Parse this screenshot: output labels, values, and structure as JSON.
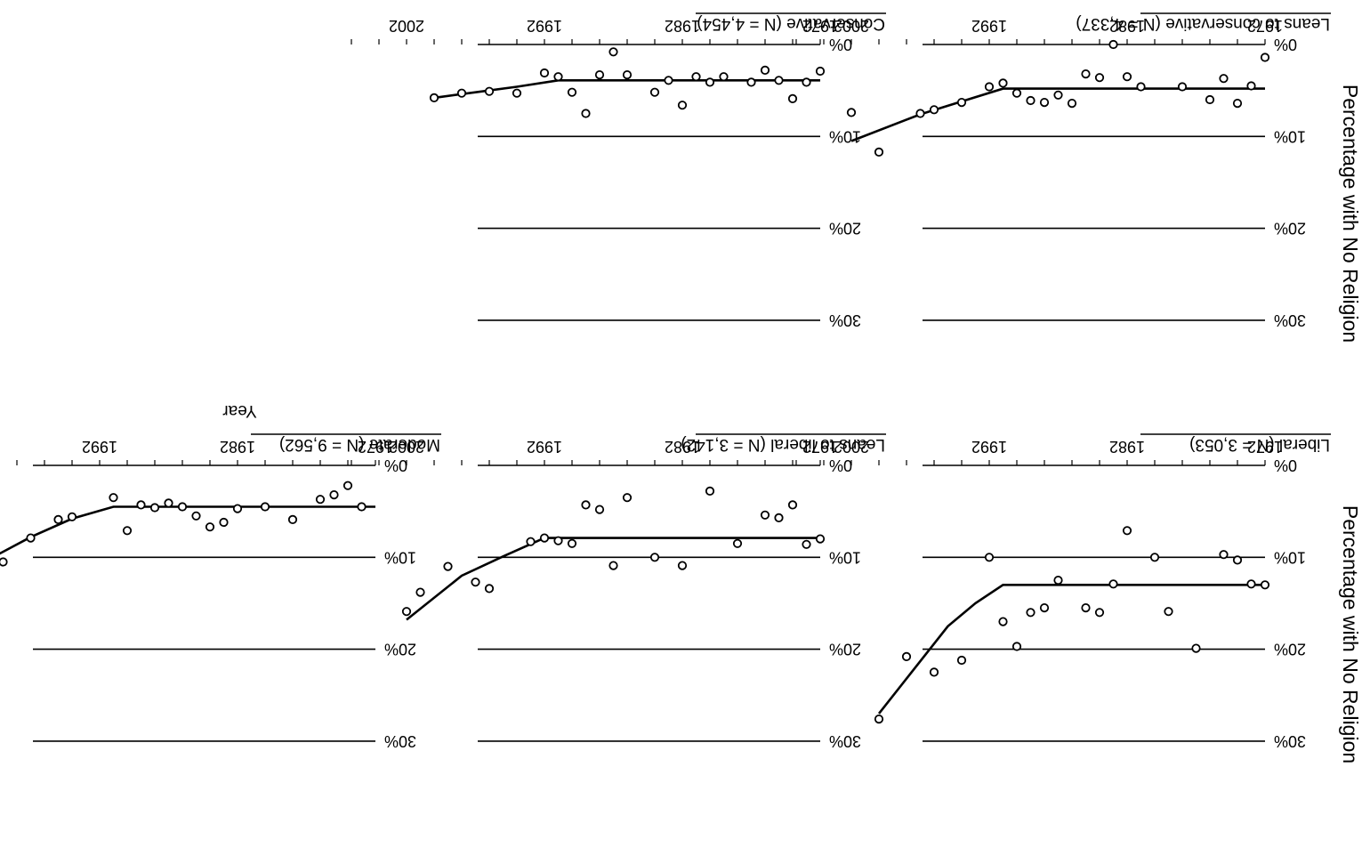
{
  "y_axis_title": "Percentage with No Religion",
  "chart_data": [
    {
      "type": "scatter",
      "title": "Liberal (N = 3,053)",
      "xlabel": "",
      "ylabel": "Percentage with No Religion",
      "xlim": [
        1972,
        2006
      ],
      "ylim": [
        0,
        30
      ],
      "xticks": [
        "1972",
        "1982",
        "1992",
        "2002"
      ],
      "yticks": [
        "0%",
        "10%",
        "20%",
        "30%"
      ],
      "grid": true,
      "points": [
        [
          1972,
          13
        ],
        [
          1973,
          12.9
        ],
        [
          1974,
          10.3
        ],
        [
          1975,
          9.7
        ],
        [
          1977,
          19.9
        ],
        [
          1979,
          15.9
        ],
        [
          1980,
          10
        ],
        [
          1982,
          7.1
        ],
        [
          1983,
          12.9
        ],
        [
          1984,
          16
        ],
        [
          1985,
          15.5
        ],
        [
          1987,
          12.5
        ],
        [
          1988,
          15.5
        ],
        [
          1989,
          16
        ],
        [
          1990,
          19.7
        ],
        [
          1991,
          17
        ],
        [
          1992,
          10
        ],
        [
          1994,
          21.2
        ],
        [
          1996,
          22.5
        ],
        [
          1998,
          20.8
        ],
        [
          2000,
          27.6
        ]
      ],
      "fit": [
        [
          1972,
          13
        ],
        [
          1991,
          13
        ],
        [
          1993,
          15
        ],
        [
          1995,
          17.5
        ],
        [
          2000,
          27
        ]
      ]
    },
    {
      "type": "scatter",
      "title": "Leans to liberal (N = 3,142)",
      "xlabel": "",
      "ylabel": "",
      "xlim": [
        1972,
        2006
      ],
      "ylim": [
        0,
        30
      ],
      "xticks": [
        "1972",
        "1982",
        "1992",
        "2002"
      ],
      "yticks": [
        "0%",
        "10%",
        "20%",
        "30%"
      ],
      "grid": true,
      "points": [
        [
          1972,
          8
        ],
        [
          1973,
          8.6
        ],
        [
          1974,
          4.3
        ],
        [
          1975,
          5.7
        ],
        [
          1976,
          5.4
        ],
        [
          1978,
          8.5
        ],
        [
          1980,
          2.8
        ],
        [
          1982,
          10.9
        ],
        [
          1984,
          10
        ],
        [
          1986,
          3.5
        ],
        [
          1987,
          10.9
        ],
        [
          1988,
          4.8
        ],
        [
          1989,
          4.3
        ],
        [
          1990,
          8.5
        ],
        [
          1991,
          8.2
        ],
        [
          1992,
          7.9
        ],
        [
          1993,
          8.3
        ],
        [
          1996,
          13.4
        ],
        [
          1997,
          12.7
        ],
        [
          1999,
          11
        ],
        [
          2001,
          13.8
        ],
        [
          2002,
          15.9
        ]
      ],
      "fit": [
        [
          1972,
          7.9
        ],
        [
          1992,
          7.9
        ],
        [
          1995,
          9.9
        ],
        [
          1998,
          12
        ],
        [
          2002,
          16.8
        ]
      ]
    },
    {
      "type": "scatter",
      "title": "Moderate (N = 9,562)",
      "xlabel": "Year",
      "ylabel": "",
      "xlim": [
        1972,
        2006
      ],
      "ylim": [
        0,
        30
      ],
      "xticks": [
        "1972",
        "1982",
        "1992",
        "2002"
      ],
      "yticks": [
        "0%",
        "10%",
        "20%",
        "30%"
      ],
      "grid": true,
      "points": [
        [
          1973,
          4.5
        ],
        [
          1974,
          2.2
        ],
        [
          1975,
          3.2
        ],
        [
          1976,
          3.7
        ],
        [
          1978,
          5.9
        ],
        [
          1980,
          4.5
        ],
        [
          1982,
          4.7
        ],
        [
          1983,
          6.2
        ],
        [
          1984,
          6.7
        ],
        [
          1985,
          5.5
        ],
        [
          1986,
          4.5
        ],
        [
          1987,
          4.1
        ],
        [
          1988,
          4.6
        ],
        [
          1989,
          4.3
        ],
        [
          1990,
          7.1
        ],
        [
          1991,
          3.5
        ],
        [
          1994,
          5.6
        ],
        [
          1995,
          5.9
        ],
        [
          1997,
          7.9
        ],
        [
          1999,
          10.5
        ],
        [
          2001,
          11
        ]
      ],
      "fit": [
        [
          1972,
          4.5
        ],
        [
          1991,
          4.5
        ],
        [
          1994,
          5.8
        ],
        [
          1997,
          7.8
        ],
        [
          2001,
          11
        ]
      ]
    },
    {
      "type": "scatter",
      "title": "Leans to conservative (N = 4,337)",
      "xlabel": "Year",
      "ylabel": "Percentage with No Religion",
      "xlim": [
        1972,
        2006
      ],
      "ylim": [
        0,
        30
      ],
      "xticks": [
        "1972",
        "1982",
        "1992",
        "2002"
      ],
      "yticks": [
        "0%",
        "10%",
        "20%",
        "30%"
      ],
      "grid": true,
      "points": [
        [
          1972,
          1.4
        ],
        [
          1973,
          4.5
        ],
        [
          1974,
          6.4
        ],
        [
          1975,
          3.7
        ],
        [
          1976,
          6
        ],
        [
          1978,
          4.6
        ],
        [
          1981,
          4.6
        ],
        [
          1982,
          3.5
        ],
        [
          1983,
          0
        ],
        [
          1984,
          3.6
        ],
        [
          1985,
          3.2
        ],
        [
          1986,
          6.4
        ],
        [
          1987,
          5.5
        ],
        [
          1988,
          6.3
        ],
        [
          1989,
          6.1
        ],
        [
          1990,
          5.3
        ],
        [
          1991,
          4.2
        ],
        [
          1992,
          4.6
        ],
        [
          1994,
          6.3
        ],
        [
          1996,
          7.1
        ],
        [
          1997,
          7.5
        ],
        [
          2002,
          7.4
        ],
        [
          2000,
          11.7
        ]
      ],
      "fit": [
        [
          1972,
          4.8
        ],
        [
          1991,
          4.8
        ],
        [
          1994,
          6.2
        ],
        [
          1997,
          7.6
        ],
        [
          2002,
          10.5
        ]
      ]
    },
    {
      "type": "scatter",
      "title": "Conservative (N = 4,454)",
      "xlabel": "Year",
      "ylabel": "",
      "xlim": [
        1972,
        2006
      ],
      "ylim": [
        0,
        30
      ],
      "xticks": [
        "1972",
        "1982",
        "1992",
        "2002"
      ],
      "yticks": [
        "0%",
        "10%",
        "20%",
        "30%"
      ],
      "grid": true,
      "points": [
        [
          1972,
          2.9
        ],
        [
          1973,
          4.1
        ],
        [
          1974,
          5.9
        ],
        [
          1975,
          3.9
        ],
        [
          1976,
          2.8
        ],
        [
          1977,
          4.1
        ],
        [
          1979,
          3.5
        ],
        [
          1980,
          4.1
        ],
        [
          1981,
          3.5
        ],
        [
          1982,
          6.6
        ],
        [
          1983,
          3.9
        ],
        [
          1984,
          5.2
        ],
        [
          1986,
          3.3
        ],
        [
          1987,
          0.8
        ],
        [
          1988,
          3.3
        ],
        [
          1989,
          7.5
        ],
        [
          1990,
          5.2
        ],
        [
          1991,
          3.5
        ],
        [
          1992,
          3.1
        ],
        [
          1994,
          5.3
        ],
        [
          1996,
          5.1
        ],
        [
          1998,
          5.3
        ],
        [
          2000,
          5.8
        ]
      ],
      "fit": [
        [
          1972,
          3.9
        ],
        [
          1991,
          3.9
        ],
        [
          1994,
          4.6
        ],
        [
          1997,
          5.2
        ],
        [
          2000,
          5.8
        ]
      ]
    }
  ]
}
